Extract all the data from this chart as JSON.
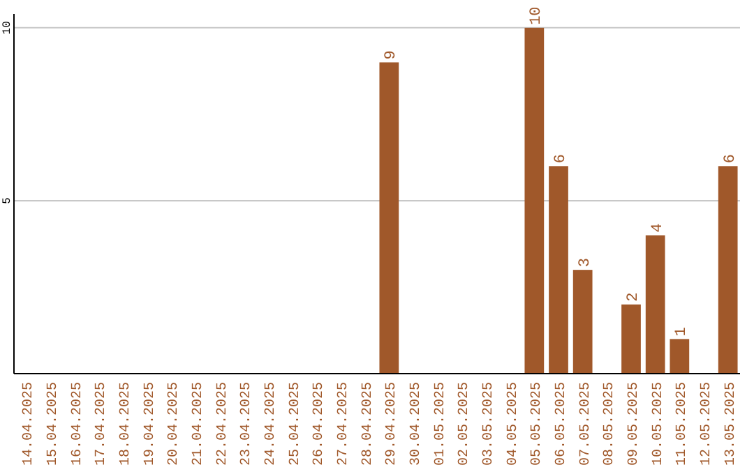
{
  "chart_data": {
    "type": "bar",
    "categories": [
      "14.04.2025",
      "15.04.2025",
      "16.04.2025",
      "17.04.2025",
      "18.04.2025",
      "19.04.2025",
      "20.04.2025",
      "21.04.2025",
      "22.04.2025",
      "23.04.2025",
      "24.04.2025",
      "25.04.2025",
      "26.04.2025",
      "27.04.2025",
      "28.04.2025",
      "29.04.2025",
      "30.04.2025",
      "01.05.2025",
      "02.05.2025",
      "03.05.2025",
      "04.05.2025",
      "05.05.2025",
      "06.05.2025",
      "07.05.2025",
      "08.05.2025",
      "09.05.2025",
      "10.05.2025",
      "11.05.2025",
      "12.05.2025",
      "13.05.2025"
    ],
    "values": [
      0,
      0,
      0,
      0,
      0,
      0,
      0,
      0,
      0,
      0,
      0,
      0,
      0,
      0,
      0,
      9,
      0,
      0,
      0,
      0,
      0,
      10,
      6,
      3,
      0,
      2,
      4,
      1,
      0,
      6
    ],
    "value_labels": [
      null,
      null,
      null,
      null,
      null,
      null,
      null,
      null,
      null,
      null,
      null,
      null,
      null,
      null,
      null,
      "9",
      null,
      null,
      null,
      null,
      null,
      "10",
      "6",
      "3",
      null,
      "2",
      "4",
      "1",
      null,
      "6"
    ],
    "color": "#a0582a",
    "ylim": [
      0,
      10.4
    ],
    "yticks": [
      5,
      10
    ],
    "grid": "y"
  }
}
